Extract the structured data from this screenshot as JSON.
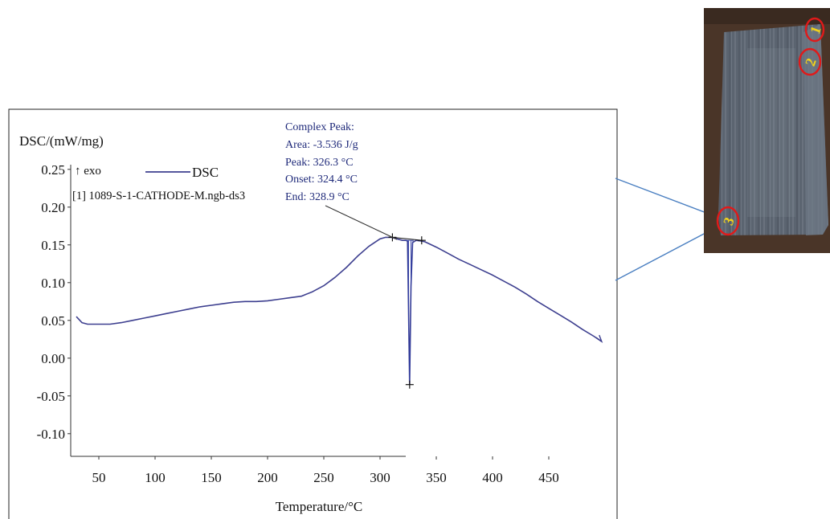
{
  "chart_data": {
    "type": "line",
    "ylabel": "DSC/(mW/mg)",
    "xlabel": "Temperature/°C",
    "exo_label": "↑ exo",
    "file_label": "[1] 1089-S-1-CATHODE-M.ngb-ds3",
    "xlim": [
      25,
      505
    ],
    "ylim": [
      -0.13,
      0.27
    ],
    "x_ticks": [
      50,
      100,
      150,
      200,
      250,
      300,
      350,
      400,
      450
    ],
    "y_ticks": [
      0.25,
      0.2,
      0.15,
      0.1,
      0.05,
      0.0,
      -0.05,
      -0.1
    ],
    "x_tick_labels": [
      "50",
      "100",
      "150",
      "200",
      "250",
      "300",
      "350",
      "400",
      "450"
    ],
    "y_tick_labels": [
      "0.25",
      "0.20",
      "0.15",
      "0.10",
      "0.05",
      "0.00",
      "-0.05",
      "-0.10"
    ],
    "series": [
      {
        "name": "DSC",
        "color": "#3d3f8f",
        "x": [
          30,
          35,
          40,
          50,
          60,
          70,
          80,
          90,
          100,
          110,
          120,
          130,
          140,
          150,
          160,
          170,
          180,
          190,
          200,
          210,
          220,
          230,
          240,
          250,
          260,
          270,
          280,
          290,
          300,
          305,
          310,
          315,
          320,
          323,
          324.4,
          325,
          326.3,
          327.5,
          328.9,
          332,
          337,
          340,
          350,
          360,
          370,
          380,
          390,
          400,
          410,
          420,
          430,
          440,
          450,
          460,
          470,
          480,
          490,
          497
        ],
        "y": [
          0.055,
          0.047,
          0.045,
          0.045,
          0.045,
          0.047,
          0.05,
          0.053,
          0.056,
          0.059,
          0.062,
          0.065,
          0.068,
          0.07,
          0.072,
          0.074,
          0.075,
          0.075,
          0.076,
          0.078,
          0.08,
          0.082,
          0.088,
          0.096,
          0.107,
          0.12,
          0.135,
          0.148,
          0.158,
          0.16,
          0.16,
          0.158,
          0.156,
          0.156,
          0.155,
          0.1,
          -0.035,
          0.095,
          0.153,
          0.156,
          0.155,
          0.154,
          0.147,
          0.139,
          0.131,
          0.124,
          0.117,
          0.11,
          0.102,
          0.094,
          0.085,
          0.075,
          0.066,
          0.057,
          0.048,
          0.038,
          0.029,
          0.022
        ]
      }
    ],
    "peak_annotation": {
      "lines": [
        "Complex Peak:",
        "Area: -3.536 J/g",
        "Peak: 326.3 °C",
        "Onset: 324.4 °C",
        "End: 328.9 °C"
      ],
      "onset": 311,
      "peak": 326.3,
      "end": 337,
      "peak_y": -0.035,
      "color": "#1f2a7a"
    }
  },
  "photo": {
    "markers": [
      "1",
      "2",
      "3"
    ],
    "marker_ring_color": "#e01a1a",
    "marker_text_color": "#f2d21a",
    "connector_color": "#4a7fc1"
  }
}
